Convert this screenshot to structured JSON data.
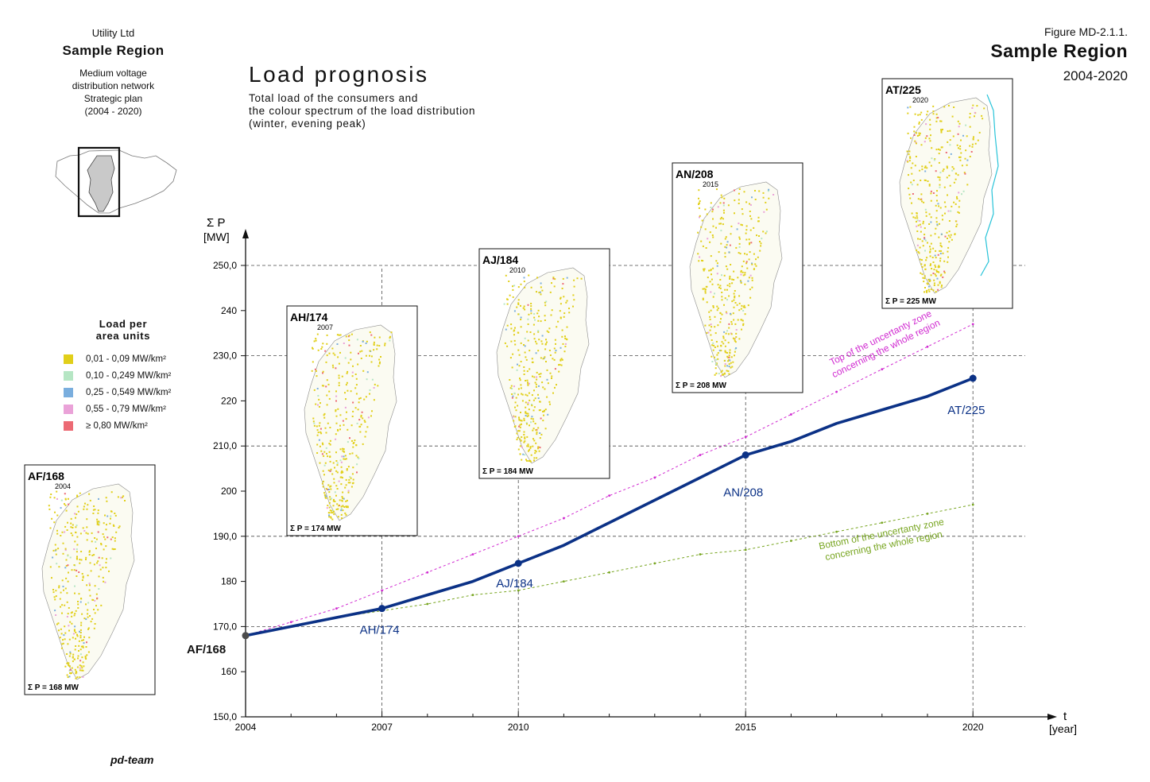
{
  "header": {
    "organization": "Utility Ltd",
    "region": "Sample Region",
    "subtitle_lines": [
      "Medium voltage",
      "distribution network",
      "Strategic plan",
      "(2004 - 2020)"
    ],
    "figure_label": "Figure MD-2.1.1.",
    "figure_region": "Sample Region",
    "figure_period": "2004-2020"
  },
  "title": "Load prognosis",
  "subtitle_lines": [
    "Total load of the consumers and",
    "the colour spectrum of the load distribution",
    "(winter, evening peak)"
  ],
  "legend": {
    "title_lines": [
      "Load per",
      "area units"
    ],
    "items": [
      {
        "label": "0,01 - 0,09 MW/km²",
        "color": "#e1cf1a"
      },
      {
        "label": "0,10 - 0,249 MW/km²",
        "color": "#b6e6c4"
      },
      {
        "label": "0,25 - 0,549 MW/km²",
        "color": "#7aaede"
      },
      {
        "label": "0,55 - 0,79 MW/km²",
        "color": "#eaa2d8"
      },
      {
        "label": "≥ 0,80 MW/km²",
        "color": "#ec6a74"
      }
    ]
  },
  "footer": "pd-team",
  "colors": {
    "main_line": "#0b3186",
    "upper_band": "#d12bd1",
    "lower_band": "#77a51f",
    "grid": "#4a4a4a"
  },
  "map_cards": [
    {
      "year": 2004,
      "title": "AF/168",
      "year_label": "2004",
      "sum_label": "Σ P = 168 MW"
    },
    {
      "year": 2007,
      "title": "AH/174",
      "year_label": "2007",
      "sum_label": "Σ P = 174 MW"
    },
    {
      "year": 2010,
      "title": "AJ/184",
      "year_label": "2010",
      "sum_label": "Σ P = 184 MW"
    },
    {
      "year": 2015,
      "title": "AN/208",
      "year_label": "2015",
      "sum_label": "Σ P = 208 MW"
    },
    {
      "year": 2020,
      "title": "AT/225",
      "year_label": "2020",
      "sum_label": "Σ P = 225 MW"
    }
  ],
  "chart_data": {
    "type": "line",
    "xlabel": [
      "t",
      "[year]"
    ],
    "ylabel": [
      "Σ P",
      "[MW]"
    ],
    "xlim": [
      2004,
      2021
    ],
    "ylim": [
      150,
      252
    ],
    "x_ticks": [
      "2004",
      "2007",
      "2010",
      "2015",
      "2020"
    ],
    "y_ticks": [
      {
        "value": 150,
        "label": "150,0"
      },
      {
        "value": 160,
        "label": "160"
      },
      {
        "value": 170,
        "label": "170,0"
      },
      {
        "value": 180,
        "label": "180"
      },
      {
        "value": 190,
        "label": "190,0"
      },
      {
        "value": 200,
        "label": "200"
      },
      {
        "value": 210,
        "label": "210,0"
      },
      {
        "value": 220,
        "label": "220"
      },
      {
        "value": 230,
        "label": "230,0"
      },
      {
        "value": 240,
        "label": "240"
      },
      {
        "value": 250,
        "label": "250,0"
      }
    ],
    "grid": true,
    "series": [
      {
        "x": [
          2004,
          2005,
          2006,
          2007,
          2008,
          2009,
          2010,
          2011,
          2012,
          2013,
          2014,
          2015,
          2016,
          2017,
          2018,
          2019,
          2020
        ],
        "values": [
          168,
          170,
          172,
          174,
          177,
          180,
          184,
          188,
          193,
          198,
          203,
          208,
          211,
          215,
          218,
          221,
          225
        ]
      },
      {
        "name": "Top of the uncertanty zone concerning the whole region",
        "x": [
          2004,
          2005,
          2006,
          2007,
          2008,
          2009,
          2010,
          2011,
          2012,
          2013,
          2014,
          2015,
          2016,
          2017,
          2018,
          2019,
          2020
        ],
        "values": [
          168,
          171,
          174,
          178,
          182,
          186,
          190,
          194,
          199,
          203,
          208,
          212,
          217,
          222,
          227,
          232,
          237
        ]
      },
      {
        "name": "Bottom of the uncertanty zone concerning the whole region",
        "x": [
          2004,
          2005,
          2006,
          2007,
          2008,
          2009,
          2010,
          2011,
          2012,
          2013,
          2014,
          2015,
          2016,
          2017,
          2018,
          2019,
          2020
        ],
        "values": [
          168,
          170,
          172,
          173.5,
          175,
          177,
          178,
          180,
          182,
          184,
          186,
          187,
          189,
          191,
          193,
          195,
          197
        ]
      }
    ],
    "point_labels": [
      {
        "x": 2004,
        "y": 168,
        "label": "AF/168"
      },
      {
        "x": 2007,
        "y": 174,
        "label": "AH/174"
      },
      {
        "x": 2010,
        "y": 184,
        "label": "AJ/184"
      },
      {
        "x": 2015,
        "y": 208,
        "label": "AN/208"
      },
      {
        "x": 2020,
        "y": 225,
        "label": "AT/225"
      }
    ]
  }
}
